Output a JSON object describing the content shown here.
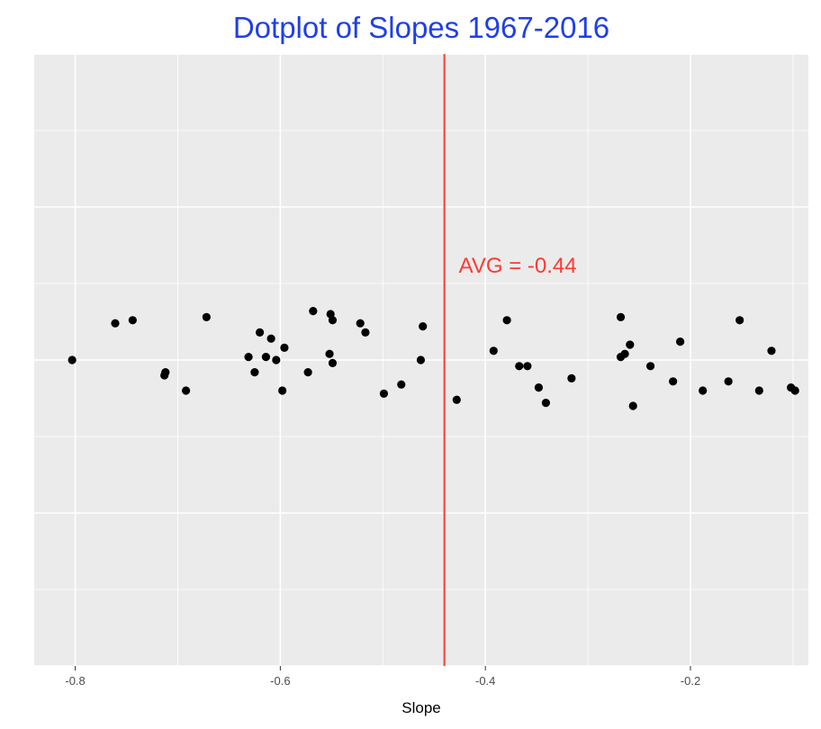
{
  "chart_data": {
    "type": "scatter",
    "title": "Dotplot of Slopes 1967-2016",
    "xlabel": "Slope",
    "ylabel": "",
    "xlim": [
      -0.84,
      -0.085
    ],
    "ylim": [
      -1,
      1
    ],
    "x_ticks": [
      -0.8,
      -0.6,
      -0.4,
      -0.2
    ],
    "x_tick_labels": [
      "-0.8",
      "-0.6",
      "-0.4",
      "-0.2"
    ],
    "grid": true,
    "avg_line": {
      "value": -0.44,
      "label": "AVG = -0.44"
    },
    "points": [
      {
        "x": -0.803,
        "y": 0.0
      },
      {
        "x": -0.761,
        "y": 0.12
      },
      {
        "x": -0.744,
        "y": 0.13
      },
      {
        "x": -0.712,
        "y": -0.04
      },
      {
        "x": -0.713,
        "y": -0.05
      },
      {
        "x": -0.692,
        "y": -0.1
      },
      {
        "x": -0.672,
        "y": 0.14
      },
      {
        "x": -0.631,
        "y": 0.01
      },
      {
        "x": -0.625,
        "y": -0.04
      },
      {
        "x": -0.62,
        "y": 0.09
      },
      {
        "x": -0.614,
        "y": 0.01
      },
      {
        "x": -0.609,
        "y": 0.07
      },
      {
        "x": -0.604,
        "y": 0.0
      },
      {
        "x": -0.598,
        "y": -0.1
      },
      {
        "x": -0.596,
        "y": 0.04
      },
      {
        "x": -0.573,
        "y": -0.04
      },
      {
        "x": -0.568,
        "y": 0.16
      },
      {
        "x": -0.552,
        "y": 0.02
      },
      {
        "x": -0.551,
        "y": 0.15
      },
      {
        "x": -0.549,
        "y": 0.13
      },
      {
        "x": -0.549,
        "y": -0.01
      },
      {
        "x": -0.522,
        "y": 0.12
      },
      {
        "x": -0.517,
        "y": 0.09
      },
      {
        "x": -0.499,
        "y": -0.11
      },
      {
        "x": -0.482,
        "y": -0.08
      },
      {
        "x": -0.463,
        "y": 0.0
      },
      {
        "x": -0.461,
        "y": 0.11
      },
      {
        "x": -0.428,
        "y": -0.13
      },
      {
        "x": -0.392,
        "y": 0.03
      },
      {
        "x": -0.379,
        "y": 0.13
      },
      {
        "x": -0.367,
        "y": -0.02
      },
      {
        "x": -0.359,
        "y": -0.02
      },
      {
        "x": -0.348,
        "y": -0.09
      },
      {
        "x": -0.341,
        "y": -0.14
      },
      {
        "x": -0.316,
        "y": -0.06
      },
      {
        "x": -0.268,
        "y": 0.14
      },
      {
        "x": -0.268,
        "y": 0.01
      },
      {
        "x": -0.264,
        "y": 0.02
      },
      {
        "x": -0.259,
        "y": 0.05
      },
      {
        "x": -0.256,
        "y": -0.15
      },
      {
        "x": -0.239,
        "y": -0.02
      },
      {
        "x": -0.217,
        "y": -0.07
      },
      {
        "x": -0.21,
        "y": 0.06
      },
      {
        "x": -0.188,
        "y": -0.1
      },
      {
        "x": -0.163,
        "y": -0.07
      },
      {
        "x": -0.152,
        "y": 0.13
      },
      {
        "x": -0.133,
        "y": -0.1
      },
      {
        "x": -0.121,
        "y": 0.03
      },
      {
        "x": -0.102,
        "y": -0.09
      },
      {
        "x": -0.098,
        "y": -0.1
      }
    ],
    "colors": {
      "title": "#1f3fe8",
      "panel": "#ebebeb",
      "grid": "#ffffff",
      "points": "#000000",
      "avg": "#ff3b30"
    }
  }
}
